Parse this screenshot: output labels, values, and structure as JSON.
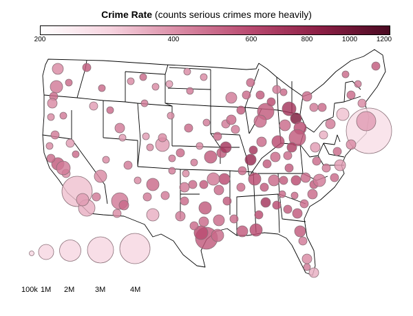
{
  "title": {
    "bold": "Crime Rate",
    "rest": "(counts serious crimes more heavily)"
  },
  "colorbar": {
    "colors": [
      "#ffffff",
      "#f6d3df",
      "#d98aa4",
      "#b94a70",
      "#8c1f45",
      "#4a0a22"
    ],
    "ticks": [
      "200",
      "400",
      "600",
      "800",
      "1000",
      "1200"
    ],
    "tick_values": [
      200,
      400,
      600,
      800,
      1000,
      1200
    ],
    "scale": "log"
  },
  "size_legend": {
    "labels": [
      "100k",
      "1M",
      "2M",
      "3M",
      "4M"
    ],
    "values": [
      100000,
      1000000,
      2000000,
      3000000,
      4000000
    ]
  },
  "map": {
    "land_fill": "#ffffff",
    "border_color": "#000000",
    "bubble_stroke": "#8a6f78"
  }
}
